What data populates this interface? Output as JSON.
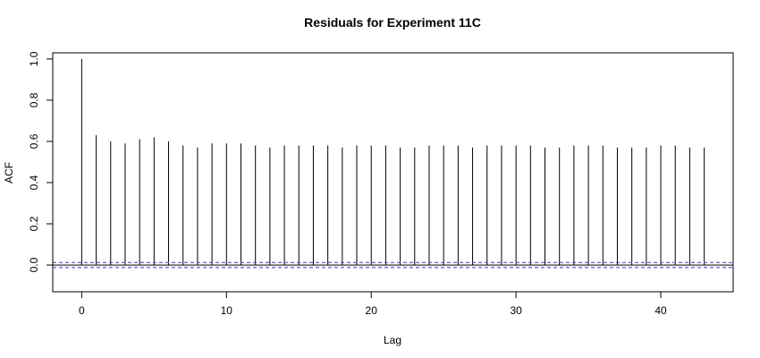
{
  "chart_data": {
    "type": "bar",
    "subtype": "acf",
    "title": "Residuals for Experiment 11C",
    "xlabel": "Lag",
    "ylabel": "ACF",
    "x": [
      0,
      1,
      2,
      3,
      4,
      5,
      6,
      7,
      8,
      9,
      10,
      11,
      12,
      13,
      14,
      15,
      16,
      17,
      18,
      19,
      20,
      21,
      22,
      23,
      24,
      25,
      26,
      27,
      28,
      29,
      30,
      31,
      32,
      33,
      34,
      35,
      36,
      37,
      38,
      39,
      40,
      41,
      42,
      43
    ],
    "values": [
      1.0,
      0.63,
      0.6,
      0.59,
      0.61,
      0.62,
      0.6,
      0.58,
      0.57,
      0.59,
      0.59,
      0.59,
      0.58,
      0.57,
      0.58,
      0.58,
      0.58,
      0.58,
      0.57,
      0.58,
      0.58,
      0.58,
      0.57,
      0.57,
      0.58,
      0.58,
      0.58,
      0.57,
      0.58,
      0.58,
      0.58,
      0.58,
      0.57,
      0.57,
      0.58,
      0.58,
      0.58,
      0.57,
      0.57,
      0.57,
      0.58,
      0.58,
      0.57,
      0.57
    ],
    "confidence_band": [
      -0.012,
      0.012
    ],
    "xlim": [
      -2,
      45
    ],
    "ylim": [
      -0.13,
      1.03
    ],
    "xticks": [
      0,
      10,
      20,
      30,
      40
    ],
    "yticks": [
      0.0,
      0.2,
      0.4,
      0.6,
      0.8,
      1.0
    ],
    "xtick_labels": [
      "0",
      "10",
      "20",
      "30",
      "40"
    ],
    "ytick_labels": [
      "0.0",
      "0.2",
      "0.4",
      "0.6",
      "0.8",
      "1.0"
    ],
    "grid": false,
    "colors": {
      "bars": "#000000",
      "zero_line": "#000000",
      "confidence": "#5555dd",
      "frame": "#000000"
    }
  }
}
